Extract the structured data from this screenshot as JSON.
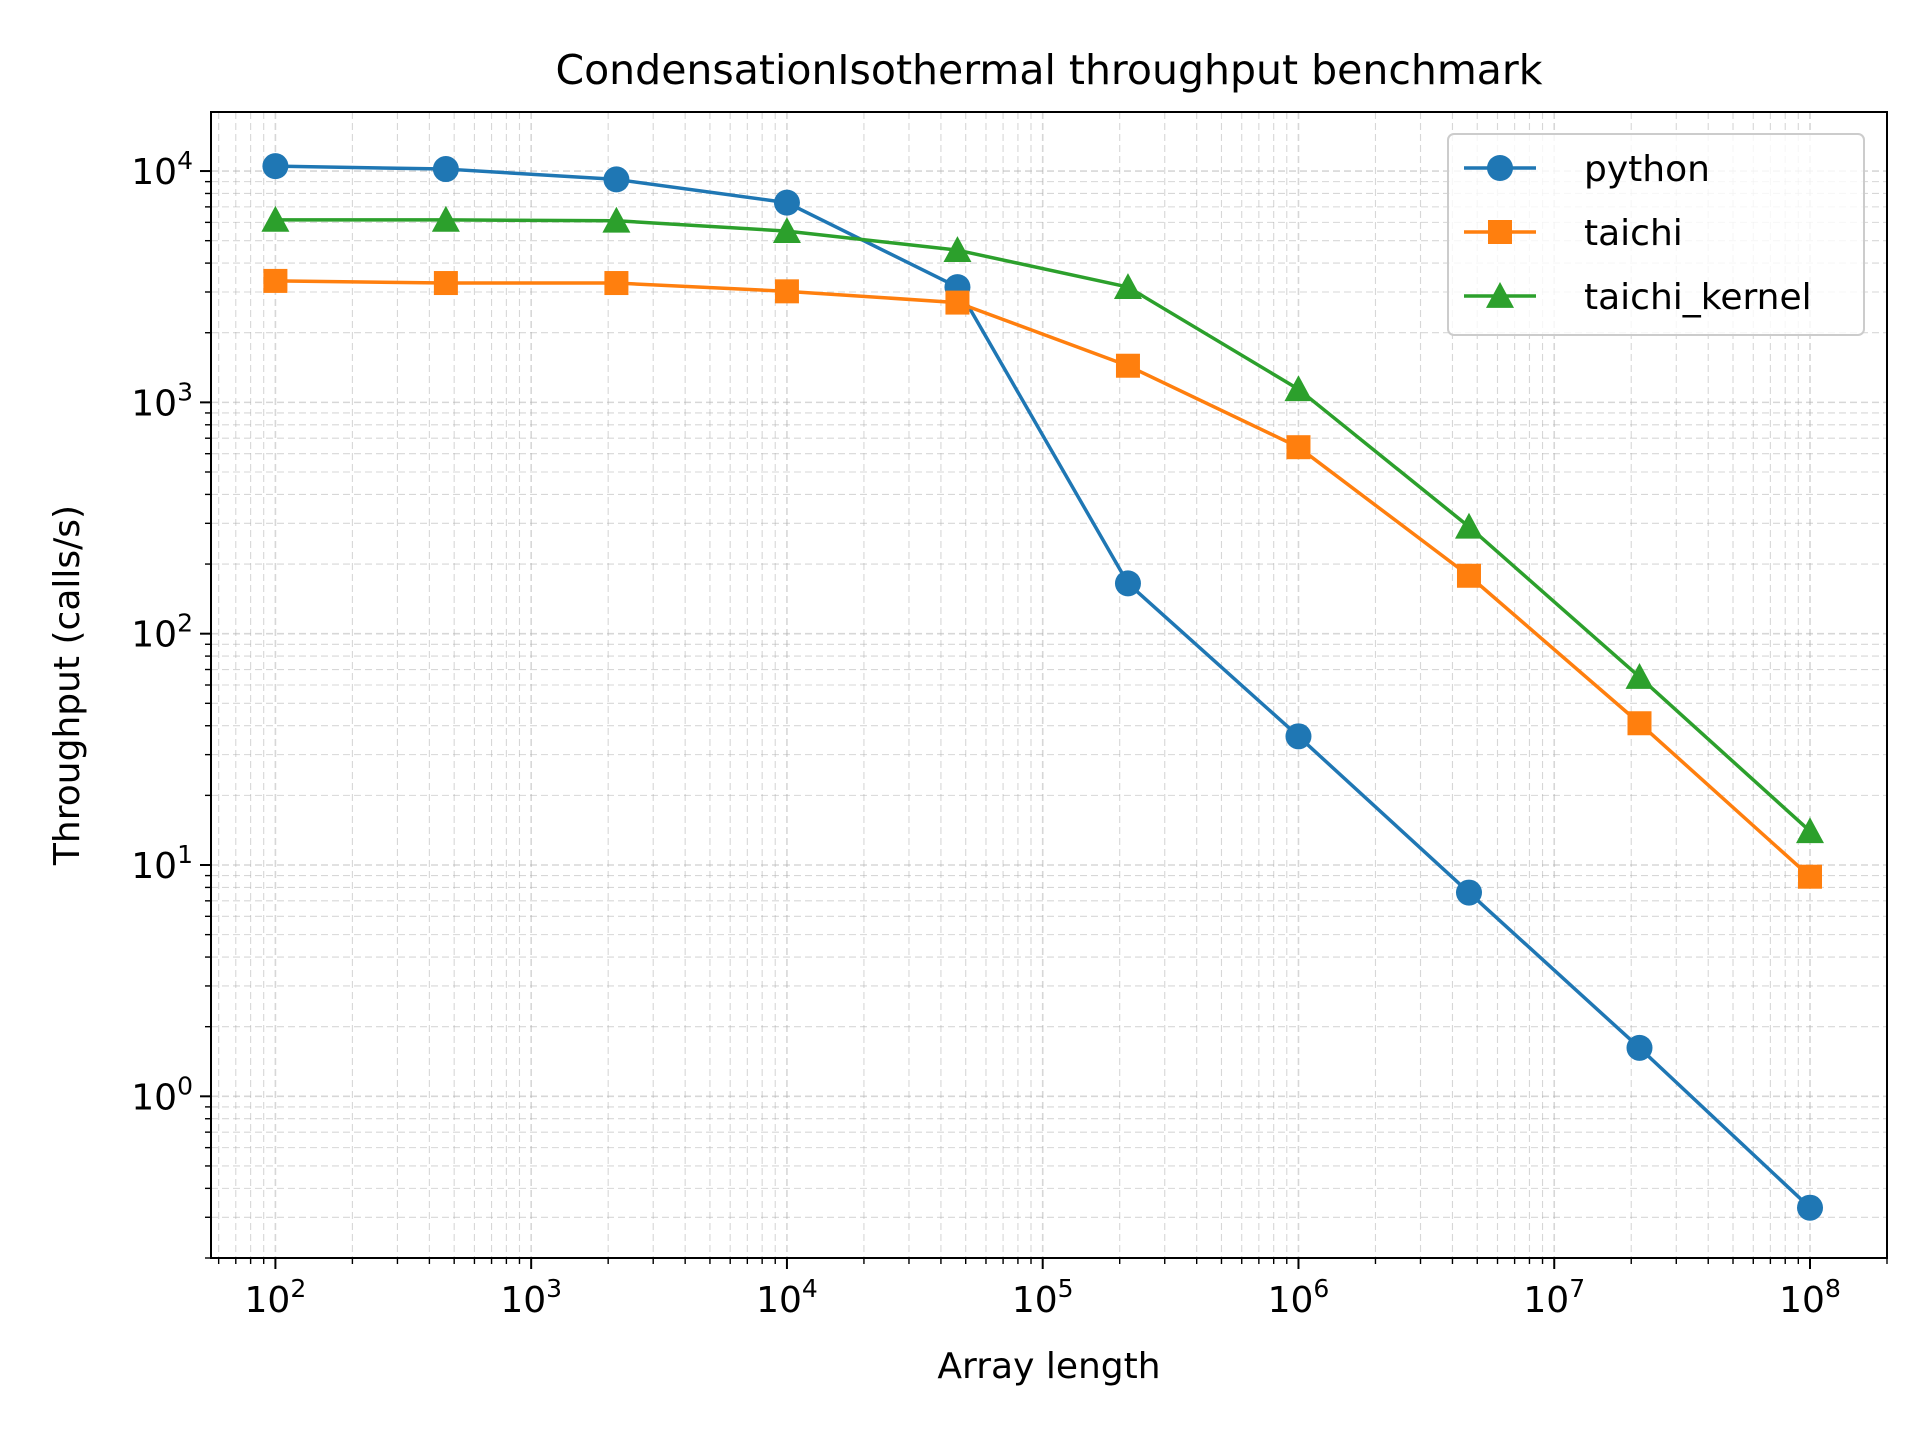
{
  "chart_data": {
    "type": "line",
    "title": "CondensationIsothermal throughput benchmark",
    "xlabel": "Array length",
    "ylabel": "Throughput (calls/s)",
    "xscale": "log",
    "yscale": "log",
    "xlim": [
      56,
      200000000
    ],
    "ylim": [
      0.2,
      18000
    ],
    "grid": true,
    "legend_position": "top-right",
    "x": [
      100,
      464,
      2154,
      10000,
      46416,
      215443,
      1000000,
      4641589,
      21544347,
      100000000
    ],
    "x_ticks": [
      {
        "base": "10",
        "exp": "2",
        "value": 100
      },
      {
        "base": "10",
        "exp": "3",
        "value": 1000
      },
      {
        "base": "10",
        "exp": "4",
        "value": 10000
      },
      {
        "base": "10",
        "exp": "5",
        "value": 100000
      },
      {
        "base": "10",
        "exp": "6",
        "value": 1000000
      },
      {
        "base": "10",
        "exp": "7",
        "value": 10000000
      },
      {
        "base": "10",
        "exp": "8",
        "value": 100000000
      }
    ],
    "y_ticks": [
      {
        "base": "10",
        "exp": "0",
        "value": 1
      },
      {
        "base": "10",
        "exp": "1",
        "value": 10
      },
      {
        "base": "10",
        "exp": "2",
        "value": 100
      },
      {
        "base": "10",
        "exp": "3",
        "value": 1000
      },
      {
        "base": "10",
        "exp": "4",
        "value": 10000
      }
    ],
    "series": [
      {
        "name": "python",
        "color": "#1f77b4",
        "marker": "circle",
        "values": [
          10500,
          10200,
          9200,
          7300,
          3150,
          165,
          36,
          7.6,
          1.62,
          0.33
        ]
      },
      {
        "name": "taichi",
        "color": "#ff7f0e",
        "marker": "square",
        "values": [
          3350,
          3280,
          3280,
          3020,
          2700,
          1440,
          640,
          178,
          41,
          8.9
        ]
      },
      {
        "name": "taichi_kernel",
        "color": "#2ca02c",
        "marker": "triangle",
        "values": [
          6150,
          6150,
          6100,
          5500,
          4550,
          3150,
          1140,
          290,
          65,
          14
        ]
      }
    ]
  }
}
